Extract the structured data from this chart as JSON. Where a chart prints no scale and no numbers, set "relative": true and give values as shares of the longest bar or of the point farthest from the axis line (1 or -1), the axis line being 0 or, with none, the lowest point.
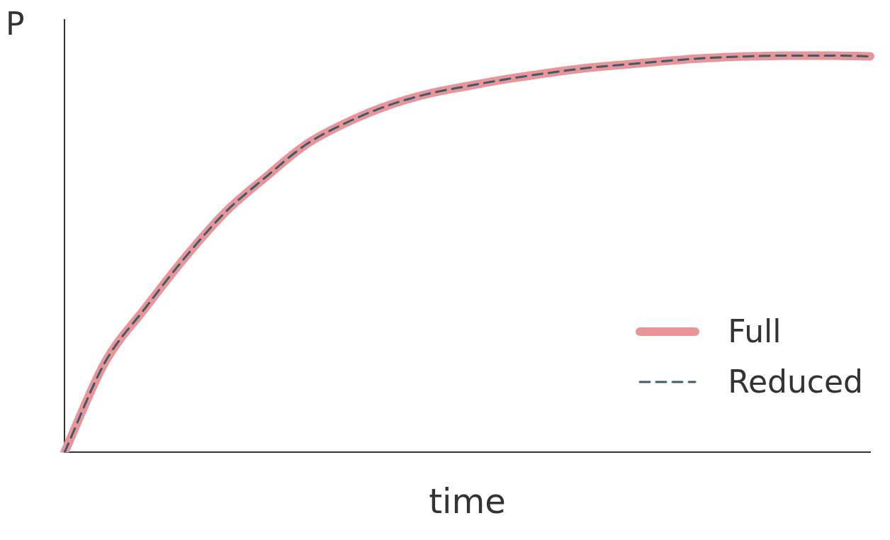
{
  "chart_data": {
    "type": "line",
    "relative": true,
    "xlabel": "time",
    "ylabel": "P",
    "categories": [
      null,
      null,
      null,
      null,
      null,
      null,
      null,
      null,
      null,
      null,
      null,
      null,
      null,
      null,
      null,
      null,
      null,
      null,
      null,
      null,
      null
    ],
    "series": [
      {
        "name": "Full",
        "color": "#e8959a",
        "line_style": "solid",
        "values": [
          0,
          0.226,
          0.363,
          0.492,
          0.606,
          0.694,
          0.776,
          0.831,
          0.873,
          0.903,
          0.923,
          0.941,
          0.956,
          0.969,
          0.978,
          0.987,
          0.994,
          0.998,
          1,
          1,
          0.998
        ]
      },
      {
        "name": "Reduced",
        "color": "#3e5b6a",
        "line_style": "dashed",
        "values": [
          0,
          0.226,
          0.363,
          0.492,
          0.606,
          0.694,
          0.776,
          0.831,
          0.873,
          0.903,
          0.923,
          0.941,
          0.956,
          0.969,
          0.978,
          0.987,
          0.994,
          0.998,
          1,
          1,
          0.998
        ]
      }
    ],
    "legend": "bottom right",
    "marker": "none",
    "grid": false
  }
}
